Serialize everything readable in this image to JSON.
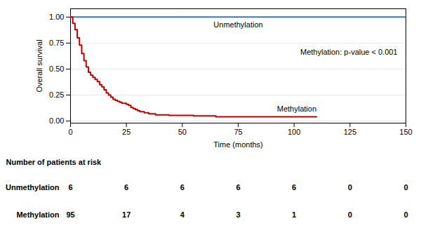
{
  "chart_data": {
    "type": "step",
    "xlabel": "Time (months)",
    "ylabel": "Overall survival",
    "series": [
      {
        "name": "Unmethylation",
        "color": "#4472C4",
        "x": [
          0,
          0.5,
          100,
          150
        ],
        "values": [
          1.0,
          1.0,
          1.0,
          1.0
        ]
      },
      {
        "name": "Methylation",
        "color": "#C00000",
        "x": [
          0,
          1,
          2,
          3,
          4,
          5,
          6,
          7,
          8,
          9,
          10,
          11,
          12,
          13,
          14,
          15,
          16,
          17,
          18,
          19,
          20,
          21,
          22,
          23,
          24,
          25,
          26,
          27,
          28,
          29,
          30,
          31,
          32,
          33,
          34,
          35,
          36,
          38,
          40,
          42,
          44,
          46,
          48,
          50,
          55,
          60,
          65,
          70,
          75,
          80,
          85,
          90,
          95,
          100,
          110
        ],
        "values": [
          1.0,
          0.94,
          0.88,
          0.8,
          0.73,
          0.65,
          0.58,
          0.52,
          0.47,
          0.44,
          0.42,
          0.4,
          0.38,
          0.35,
          0.33,
          0.3,
          0.27,
          0.25,
          0.23,
          0.21,
          0.2,
          0.19,
          0.18,
          0.17,
          0.17,
          0.16,
          0.15,
          0.13,
          0.12,
          0.11,
          0.1,
          0.09,
          0.09,
          0.08,
          0.08,
          0.07,
          0.07,
          0.06,
          0.06,
          0.06,
          0.055,
          0.055,
          0.055,
          0.055,
          0.05,
          0.05,
          0.04,
          0.04,
          0.04,
          0.04,
          0.04,
          0.04,
          0.04,
          0.04,
          0.04
        ]
      }
    ],
    "xlim": [
      0,
      150
    ],
    "xticks": [
      0,
      25,
      50,
      75,
      100,
      125,
      150
    ],
    "ylim": [
      -0.02,
      1.08
    ],
    "yticks": [
      {
        "value": 0,
        "label": "0.00"
      },
      0.25,
      {
        "value": 0.5,
        "label": "0.50"
      },
      0.75,
      {
        "value": 1,
        "label": "1.00"
      }
    ],
    "grid": true,
    "annotations": [
      "Methylation: p-value < 0.001"
    ],
    "risk_table": {
      "title": "Number of patients at risk",
      "x": [
        0,
        25,
        50,
        75,
        100,
        125,
        150
      ],
      "rows": [
        {
          "name": "Unmethylation",
          "values": [
            6,
            6,
            6,
            6,
            6,
            0,
            0
          ]
        },
        {
          "name": "Methylation",
          "values": [
            95,
            17,
            4,
            3,
            1,
            0,
            0
          ]
        }
      ]
    }
  }
}
